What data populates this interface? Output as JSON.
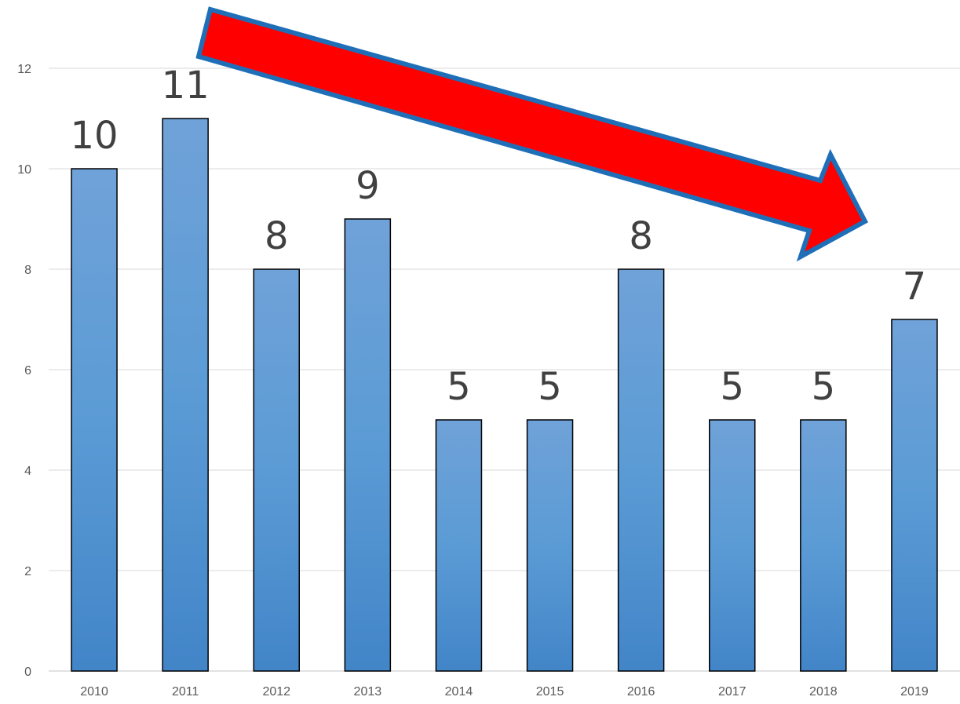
{
  "chart_data": {
    "type": "bar",
    "categories": [
      "2010",
      "2011",
      "2012",
      "2013",
      "2014",
      "2015",
      "2016",
      "2017",
      "2018",
      "2019"
    ],
    "values": [
      10,
      11,
      8,
      9,
      5,
      5,
      8,
      5,
      5,
      7
    ],
    "data_labels": [
      "10",
      "11",
      "8",
      "9",
      "5",
      "5",
      "8",
      "5",
      "5",
      "7"
    ],
    "y_ticks": [
      "0",
      "2",
      "4",
      "6",
      "8",
      "10",
      "12"
    ],
    "ylim": [
      0,
      13
    ],
    "grid": true,
    "legend": "none",
    "colors": {
      "bar_top": "#6fa2d8",
      "bar_bottom": "#4285c8",
      "bar_border": "#000000",
      "grid": "#d9d9d9",
      "arrow_fill": "#ff0000",
      "arrow_border": "#1f6fb8"
    },
    "annotation": {
      "shape": "arrow",
      "direction": "down-right",
      "from_category": "2011",
      "to_category": "2019"
    }
  }
}
